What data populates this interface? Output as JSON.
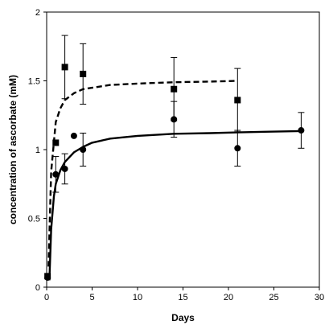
{
  "chart_data": {
    "type": "scatter",
    "xlabel": "Days",
    "ylabel": "concentration of ascorbate (mM)",
    "xlim": [
      0,
      30
    ],
    "ylim": [
      0,
      2
    ],
    "xticks": [
      0,
      5,
      10,
      15,
      20,
      25,
      30
    ],
    "yticks": [
      0,
      0.5,
      1,
      1.5,
      2
    ],
    "ytick_labels": [
      "0",
      "0.5",
      "1",
      "1.5",
      "2"
    ],
    "grid": false,
    "legend": "none",
    "series": [
      {
        "marker": "square",
        "color": "#000000",
        "points": [
          {
            "x": 0.1,
            "y": 0.08,
            "err": 0.0
          },
          {
            "x": 1,
            "y": 1.05,
            "err": 0.0
          },
          {
            "x": 2,
            "y": 1.6,
            "err": 0.23
          },
          {
            "x": 4,
            "y": 1.55,
            "err": 0.22
          },
          {
            "x": 14,
            "y": 1.44,
            "err": 0.23
          },
          {
            "x": 21,
            "y": 1.36,
            "err": 0.23
          }
        ],
        "fit": {
          "style": "dashed",
          "x": [
            0.2,
            0.5,
            1,
            1.5,
            2,
            3,
            4,
            5,
            7,
            10,
            14,
            18,
            21
          ],
          "y": [
            0.15,
            0.84,
            1.2,
            1.3,
            1.36,
            1.41,
            1.44,
            1.45,
            1.47,
            1.48,
            1.49,
            1.495,
            1.5
          ]
        }
      },
      {
        "marker": "circle",
        "color": "#000000",
        "points": [
          {
            "x": 0.1,
            "y": 0.07,
            "err": 0.0
          },
          {
            "x": 1,
            "y": 0.82,
            "err": 0.13
          },
          {
            "x": 2,
            "y": 0.86,
            "err": 0.11
          },
          {
            "x": 3,
            "y": 1.1,
            "err": 0.0
          },
          {
            "x": 4,
            "y": 1.0,
            "err": 0.12
          },
          {
            "x": 14,
            "y": 1.22,
            "err": 0.13
          },
          {
            "x": 21,
            "y": 1.01,
            "err": 0.13
          },
          {
            "x": 28,
            "y": 1.14,
            "err": 0.13
          }
        ],
        "fit": {
          "style": "solid",
          "x": [
            0.3,
            0.5,
            0.8,
            1,
            1.5,
            2,
            3,
            4,
            5,
            7,
            10,
            14,
            18,
            21,
            24,
            28
          ],
          "y": [
            0.05,
            0.42,
            0.66,
            0.75,
            0.85,
            0.91,
            0.98,
            1.02,
            1.05,
            1.08,
            1.1,
            1.115,
            1.12,
            1.125,
            1.13,
            1.135
          ]
        }
      }
    ]
  }
}
